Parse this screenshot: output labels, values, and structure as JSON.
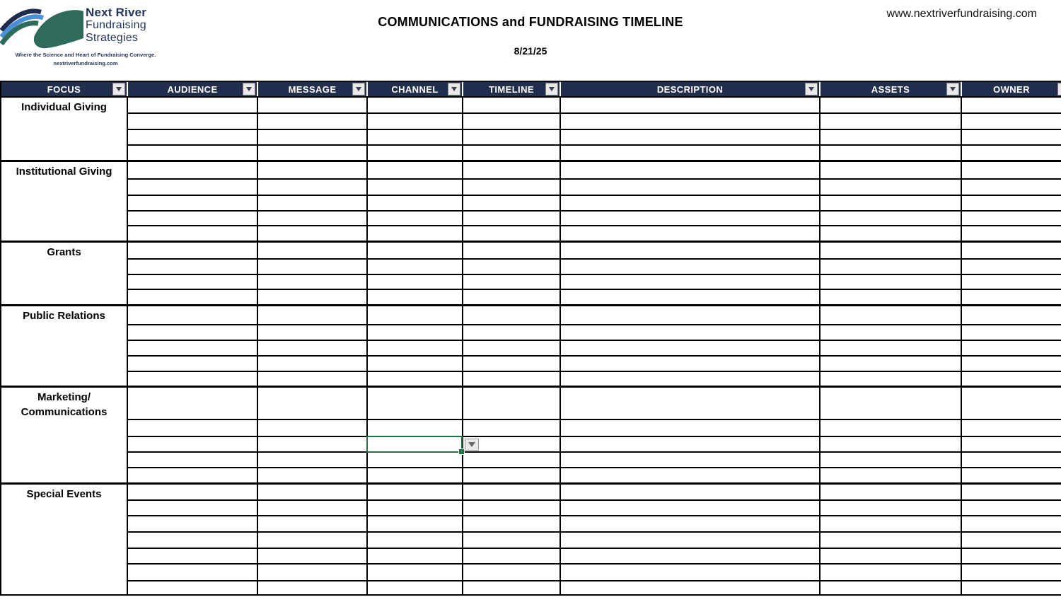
{
  "header": {
    "title": "COMMUNICATIONS and FUNDRAISING TIMELINE",
    "date": "8/21/25",
    "website_url": "www.nextriverfundraising.com"
  },
  "logo": {
    "line1": "Next River",
    "line2": "Fundraising",
    "line3": "Strategies",
    "tagline": "Where the Science and Heart of Fundraising Converge.",
    "website": "nextriverfundraising.com",
    "mark_colors": {
      "navy": "#1f2b4d",
      "blue": "#4a8fd3",
      "green": "#2f6b5c"
    }
  },
  "table": {
    "columns": [
      {
        "label": "FOCUS"
      },
      {
        "label": "AUDIENCE"
      },
      {
        "label": "MESSAGE"
      },
      {
        "label": "CHANNEL"
      },
      {
        "label": "TIMELINE"
      },
      {
        "label": "DESCRIPTION"
      },
      {
        "label": "ASSETS"
      },
      {
        "label": "OWNER"
      }
    ],
    "sections": [
      {
        "label_lines": [
          "Individual Giving"
        ],
        "row_count": 4
      },
      {
        "label_lines": [
          "Institutional Giving"
        ],
        "row_count": 5
      },
      {
        "label_lines": [
          "Grants"
        ],
        "row_count": 4
      },
      {
        "label_lines": [
          "Public Relations"
        ],
        "row_count": 5
      },
      {
        "label_lines": [
          "Marketing/",
          "Communications"
        ],
        "row_count": 5
      },
      {
        "label_lines": [
          "Special Events"
        ],
        "row_count": 7
      }
    ],
    "selection": {
      "section_index": 4,
      "row_index": 2,
      "column": "CHANNEL",
      "border_color": "#217346",
      "has_dropdown_button": true
    },
    "colors": {
      "header_bg": "#222e4e",
      "header_text": "#ffffff",
      "gridline": "#000000"
    }
  }
}
